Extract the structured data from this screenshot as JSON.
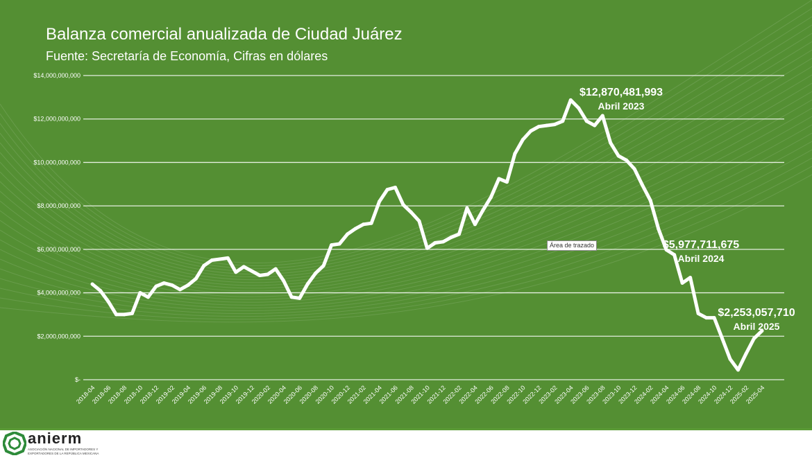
{
  "header": {
    "title": "Balanza comercial anualizada de Ciudad Juárez",
    "subtitle": "Fuente: Secretaría de Economía, Cifras en dólares"
  },
  "tooltip": "Área de trazado",
  "footer": {
    "logo": "anierm",
    "logo_sub1": "ASOCIACIÓN NACIONAL DE IMPORTADORES Y",
    "logo_sub2": "EXPORTADORES DE LA REPÚBLICA MEXICANA"
  },
  "watermark": "anierm",
  "colors": {
    "background": "#548f33",
    "line": "#ffffff"
  },
  "chart_data": {
    "type": "line",
    "title": "Balanza comercial anualizada de Ciudad Juárez",
    "xlabel": "",
    "ylabel": "",
    "ylim": [
      0,
      14000000000
    ],
    "grid": true,
    "y_ticks": [
      0,
      2000000000,
      4000000000,
      6000000000,
      8000000000,
      10000000000,
      12000000000,
      14000000000
    ],
    "y_tick_labels": [
      "$-",
      "$2,000,000,000",
      "$4,000,000,000",
      "$6,000,000,000",
      "$8,000,000,000",
      "$10,000,000,000",
      "$12,000,000,000",
      "$14,000,000,000"
    ],
    "x_tick_labels": [
      "2018-04",
      "2018-06",
      "2018-08",
      "2018-10",
      "2018-12",
      "2019-02",
      "2019-04",
      "2019-06",
      "2019-08",
      "2019-10",
      "2019-12",
      "2020-02",
      "2020-04",
      "2020-06",
      "2020-08",
      "2020-10",
      "2020-12",
      "2021-02",
      "2021-04",
      "2021-06",
      "2021-08",
      "2021-10",
      "2021-12",
      "2022-02",
      "2022-04",
      "2022-06",
      "2022-08",
      "2022-10",
      "2022-12",
      "2023-02",
      "2023-04",
      "2023-06",
      "2023-08",
      "2023-10",
      "2023-12",
      "2024-02",
      "2024-04",
      "2024-06",
      "2024-08",
      "2024-10",
      "2024-12",
      "2025-02",
      "2025-04"
    ],
    "start": "2018-04",
    "values_billions": [
      4.4,
      4.1,
      3.6,
      3.0,
      3.0,
      3.05,
      4.0,
      3.8,
      4.3,
      4.45,
      4.35,
      4.15,
      4.35,
      4.65,
      5.25,
      5.5,
      5.55,
      5.6,
      4.95,
      5.2,
      5.0,
      4.8,
      4.85,
      5.1,
      4.55,
      3.8,
      3.75,
      4.4,
      4.9,
      5.25,
      6.2,
      6.25,
      6.7,
      6.95,
      7.15,
      7.2,
      8.2,
      8.75,
      8.85,
      8.05,
      7.7,
      7.3,
      6.05,
      6.3,
      6.35,
      6.55,
      6.7,
      7.9,
      7.15,
      7.8,
      8.4,
      9.25,
      9.1,
      10.4,
      11.05,
      11.45,
      11.65,
      11.7,
      11.75,
      11.9,
      12.87,
      12.5,
      11.9,
      11.7,
      12.15,
      10.9,
      10.3,
      10.1,
      9.7,
      8.95,
      8.25,
      6.95,
      5.98,
      5.75,
      4.45,
      4.7,
      3.05,
      2.85,
      2.85,
      1.9,
      0.95,
      0.45,
      1.2,
      1.9,
      2.25
    ],
    "annotations": [
      {
        "index": 60,
        "value": "$12,870,481,993",
        "label": "Abril 2023"
      },
      {
        "index": 72,
        "value": "$5,977,711,675",
        "label": "Abril 2024"
      },
      {
        "index": 84,
        "value": "$2,253,057,710",
        "label": "Abril 2025"
      }
    ]
  }
}
